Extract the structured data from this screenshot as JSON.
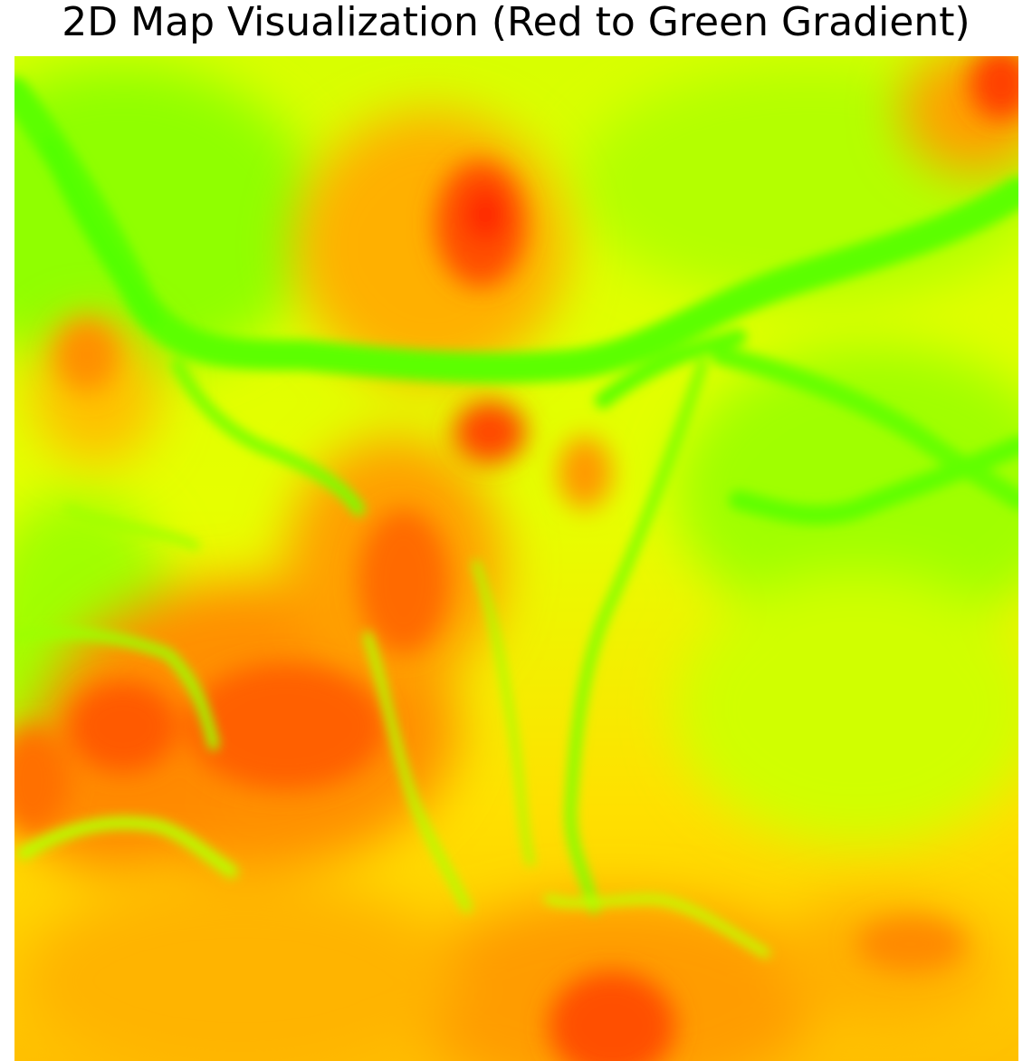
{
  "title": "2D Map Visualization (Red to Green Gradient)",
  "colors": {
    "high": "#ff2a00",
    "mid_high": "#ff8c00",
    "mid": "#ffd200",
    "yellow": "#ffff00",
    "yellow_green": "#c8ff00",
    "low": "#55ff00"
  }
}
